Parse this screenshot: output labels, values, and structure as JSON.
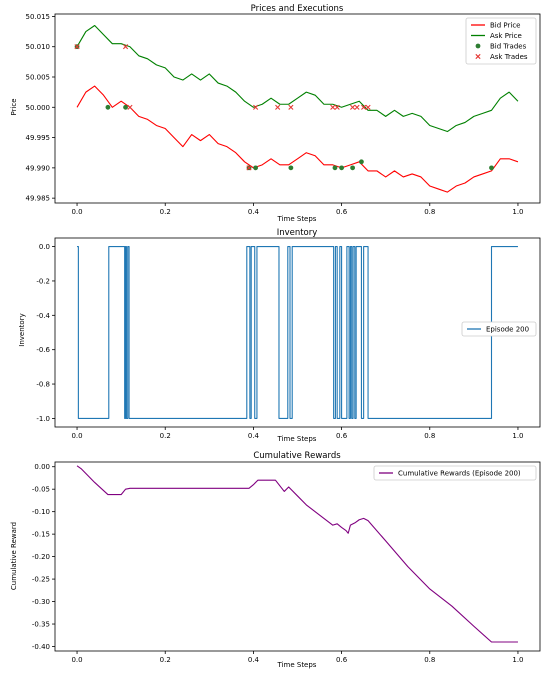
{
  "chart_data": [
    {
      "type": "line",
      "title": "Prices and Executions",
      "xlabel": "Time Steps",
      "ylabel": "Price",
      "xlim": [
        -0.05,
        1.05
      ],
      "ylim": [
        49.9842,
        50.0154
      ],
      "xticks": [
        "0.0",
        "0.2",
        "0.4",
        "0.6",
        "0.8",
        "1.0"
      ],
      "yticks": [
        "49.985",
        "49.990",
        "49.995",
        "50.000",
        "50.005",
        "50.010",
        "50.015"
      ],
      "legend_position": "top-right",
      "grid": false,
      "series": [
        {
          "name": "Bid Price",
          "kind": "line",
          "color": "#ff0000",
          "x": [
            0.0,
            0.02,
            0.04,
            0.06,
            0.08,
            0.1,
            0.12,
            0.14,
            0.16,
            0.18,
            0.2,
            0.22,
            0.24,
            0.26,
            0.28,
            0.3,
            0.32,
            0.34,
            0.36,
            0.38,
            0.4,
            0.42,
            0.44,
            0.46,
            0.48,
            0.5,
            0.52,
            0.54,
            0.56,
            0.58,
            0.6,
            0.62,
            0.64,
            0.66,
            0.68,
            0.7,
            0.72,
            0.74,
            0.76,
            0.78,
            0.8,
            0.82,
            0.84,
            0.86,
            0.88,
            0.9,
            0.92,
            0.94,
            0.96,
            0.98,
            1.0
          ],
          "y": [
            50.0,
            50.0025,
            50.0035,
            50.002,
            50.0,
            50.001,
            50.0,
            49.9985,
            49.998,
            49.997,
            49.9965,
            49.995,
            49.9935,
            49.9955,
            49.9945,
            49.9955,
            49.994,
            49.9935,
            49.9925,
            49.991,
            49.99,
            49.9905,
            49.9915,
            49.9905,
            49.9905,
            49.9915,
            49.9925,
            49.992,
            49.9905,
            49.9905,
            49.99,
            49.9905,
            49.991,
            49.9895,
            49.9895,
            49.9885,
            49.9895,
            49.9885,
            49.989,
            49.9885,
            49.987,
            49.9865,
            49.986,
            49.987,
            49.9875,
            49.9885,
            49.989,
            49.9895,
            49.9915,
            49.9915,
            49.991
          ]
        },
        {
          "name": "Ask Price",
          "kind": "line",
          "color": "#008000",
          "x": [
            0.0,
            0.02,
            0.04,
            0.06,
            0.08,
            0.1,
            0.12,
            0.14,
            0.16,
            0.18,
            0.2,
            0.22,
            0.24,
            0.26,
            0.28,
            0.3,
            0.32,
            0.34,
            0.36,
            0.38,
            0.4,
            0.42,
            0.44,
            0.46,
            0.48,
            0.5,
            0.52,
            0.54,
            0.56,
            0.58,
            0.6,
            0.62,
            0.64,
            0.66,
            0.68,
            0.7,
            0.72,
            0.74,
            0.76,
            0.78,
            0.8,
            0.82,
            0.84,
            0.86,
            0.88,
            0.9,
            0.92,
            0.94,
            0.96,
            0.98,
            1.0
          ],
          "y": [
            50.01,
            50.0125,
            50.0135,
            50.012,
            50.0105,
            50.0105,
            50.01,
            50.0085,
            50.008,
            50.007,
            50.0065,
            50.005,
            50.0045,
            50.0055,
            50.0045,
            50.0055,
            50.004,
            50.0035,
            50.0025,
            50.001,
            50.0,
            50.0005,
            50.0015,
            50.0005,
            50.0005,
            50.0015,
            50.0025,
            50.002,
            50.0005,
            50.0005,
            50.0,
            50.0005,
            50.001,
            49.9995,
            49.9995,
            49.9985,
            49.9995,
            49.9985,
            49.999,
            49.9985,
            49.997,
            49.9965,
            49.996,
            49.997,
            49.9975,
            49.9985,
            49.999,
            49.9995,
            50.0015,
            50.0025,
            50.001
          ]
        },
        {
          "name": "Bid Trades",
          "kind": "scatter",
          "marker": "circle",
          "color": "#2e7d32",
          "x": [
            0.0,
            0.07,
            0.11,
            0.39,
            0.405,
            0.485,
            0.585,
            0.6,
            0.625,
            0.645,
            0.94
          ],
          "y": [
            50.01,
            50.0,
            50.0,
            49.99,
            49.99,
            49.99,
            49.99,
            49.99,
            49.99,
            49.991,
            49.99
          ]
        },
        {
          "name": "Ask Trades",
          "kind": "scatter",
          "marker": "x",
          "color": "#e53935",
          "x": [
            0.0,
            0.11,
            0.12,
            0.39,
            0.405,
            0.455,
            0.485,
            0.58,
            0.59,
            0.625,
            0.635,
            0.65,
            0.66
          ],
          "y": [
            50.01,
            50.01,
            50.0,
            49.99,
            50.0,
            50.0,
            50.0,
            50.0,
            50.0,
            50.0,
            50.0,
            50.0,
            50.0
          ]
        }
      ]
    },
    {
      "type": "line",
      "title": "Inventory",
      "xlabel": "Time Steps",
      "ylabel": "Inventory",
      "xlim": [
        -0.05,
        1.05
      ],
      "ylim": [
        -1.05,
        0.05
      ],
      "xticks": [
        "0.0",
        "0.2",
        "0.4",
        "0.6",
        "0.8",
        "1.0"
      ],
      "yticks": [
        "-1.0",
        "-0.8",
        "-0.6",
        "-0.4",
        "-0.2",
        "0.0"
      ],
      "legend_position": "center-right",
      "grid": false,
      "series": [
        {
          "name": "Episode 200",
          "color": "#1f77b4",
          "x": [
            0.0,
            0.0,
            0.003,
            0.003,
            0.072,
            0.072,
            0.108,
            0.108,
            0.11,
            0.11,
            0.112,
            0.112,
            0.115,
            0.115,
            0.118,
            0.118,
            0.385,
            0.385,
            0.392,
            0.392,
            0.395,
            0.395,
            0.403,
            0.403,
            0.408,
            0.408,
            0.458,
            0.458,
            0.478,
            0.478,
            0.483,
            0.483,
            0.488,
            0.488,
            0.582,
            0.582,
            0.586,
            0.586,
            0.59,
            0.59,
            0.596,
            0.596,
            0.6,
            0.6,
            0.612,
            0.612,
            0.617,
            0.617,
            0.62,
            0.62,
            0.623,
            0.623,
            0.626,
            0.626,
            0.63,
            0.63,
            0.633,
            0.633,
            0.645,
            0.645,
            0.65,
            0.65,
            0.66,
            0.66,
            0.94,
            0.94,
            1.0
          ],
          "y": [
            0,
            0,
            0,
            -1,
            -1,
            0,
            0,
            -1,
            -1,
            0,
            0,
            -1,
            -1,
            0,
            0,
            -1,
            -1,
            0,
            0,
            -1,
            -1,
            0,
            0,
            -1,
            -1,
            0,
            0,
            -1,
            -1,
            0,
            0,
            -1,
            -1,
            0,
            0,
            -1,
            -1,
            0,
            0,
            -1,
            -1,
            0,
            0,
            -1,
            -1,
            0,
            0,
            -1,
            -1,
            0,
            0,
            -1,
            -1,
            0,
            0,
            -1,
            -1,
            0,
            0,
            -1,
            -1,
            0,
            0,
            -1,
            -1,
            0,
            0
          ]
        }
      ]
    },
    {
      "type": "line",
      "title": "Cumulative Rewards",
      "xlabel": "Time Steps",
      "ylabel": "Cumulative Reward",
      "xlim": [
        -0.05,
        1.05
      ],
      "ylim": [
        -0.41,
        0.0105
      ],
      "xticks": [
        "0.0",
        "0.2",
        "0.4",
        "0.6",
        "0.8",
        "1.0"
      ],
      "yticks": [
        "-0.40",
        "-0.35",
        "-0.30",
        "-0.25",
        "-0.20",
        "-0.15",
        "-0.10",
        "-0.05",
        "0.00"
      ],
      "legend_position": "top-right",
      "grid": false,
      "series": [
        {
          "name": "Cumulative Rewards (Episode 200)",
          "color": "#800080",
          "x": [
            0.0,
            0.01,
            0.04,
            0.07,
            0.1,
            0.11,
            0.12,
            0.2,
            0.3,
            0.39,
            0.4,
            0.41,
            0.45,
            0.47,
            0.48,
            0.5,
            0.52,
            0.54,
            0.56,
            0.58,
            0.59,
            0.6,
            0.61,
            0.615,
            0.62,
            0.63,
            0.64,
            0.65,
            0.66,
            0.7,
            0.75,
            0.8,
            0.85,
            0.9,
            0.94,
            0.95,
            1.0
          ],
          "y": [
            0.002,
            -0.005,
            -0.035,
            -0.062,
            -0.062,
            -0.05,
            -0.048,
            -0.048,
            -0.048,
            -0.048,
            -0.04,
            -0.03,
            -0.03,
            -0.055,
            -0.045,
            -0.065,
            -0.085,
            -0.1,
            -0.115,
            -0.13,
            -0.127,
            -0.135,
            -0.142,
            -0.148,
            -0.13,
            -0.125,
            -0.118,
            -0.115,
            -0.12,
            -0.165,
            -0.222,
            -0.272,
            -0.31,
            -0.355,
            -0.39,
            -0.39,
            -0.39
          ]
        }
      ]
    }
  ]
}
